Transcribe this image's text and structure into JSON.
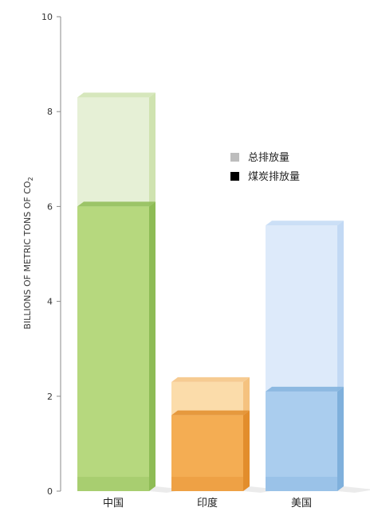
{
  "chart_data": {
    "type": "bar",
    "categories": [
      "中国",
      "印度",
      "美国"
    ],
    "series": [
      {
        "name": "总排放量",
        "values": [
          8.3,
          2.3,
          5.6
        ]
      },
      {
        "name": "煤炭排放量",
        "values": [
          6.0,
          1.6,
          2.1
        ]
      }
    ],
    "ylabel": "BILLIONS OF METRIC TONS OF CO",
    "ylabel_sub": "2",
    "ylim": [
      0,
      10
    ],
    "yticks": [
      "0",
      "2",
      "4",
      "6",
      "8",
      "10"
    ],
    "legend_position": "right",
    "grid": false,
    "colors": {
      "total": [
        "#e6f0d6",
        "#fbdcaa",
        "#ddeafa"
      ],
      "coal": [
        "#b6d87e",
        "#f4ad53",
        "#aacdee"
      ],
      "total_edge": [
        "#cfe3b0",
        "#f5c27f",
        "#c2d9f4"
      ],
      "coal_edge": [
        "#8ebc55",
        "#e28d2c",
        "#7fb0dc"
      ],
      "legend_total": "#bdbdbd",
      "legend_coal": "#000000"
    }
  }
}
